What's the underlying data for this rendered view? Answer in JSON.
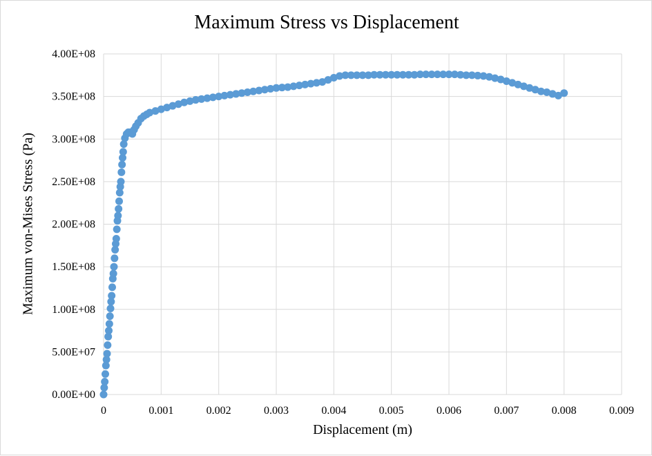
{
  "chart_data": {
    "type": "scatter",
    "title": "Maximum Stress vs Displacement",
    "xlabel": "Displacement (m)",
    "ylabel": "Maximum von-Mises Stress (Pa)",
    "xlim": [
      0,
      0.009
    ],
    "ylim": [
      0,
      400000000
    ],
    "x_ticks": [
      0,
      0.001,
      0.002,
      0.003,
      0.004,
      0.005,
      0.006,
      0.007,
      0.008,
      0.009
    ],
    "x_tick_labels": [
      "0",
      "0.001",
      "0.002",
      "0.003",
      "0.004",
      "0.005",
      "0.006",
      "0.007",
      "0.008",
      "0.009"
    ],
    "y_ticks": [
      0,
      50000000,
      100000000,
      150000000,
      200000000,
      250000000,
      300000000,
      350000000,
      400000000
    ],
    "y_tick_labels": [
      "0.00E+00",
      "5.00E+07",
      "1.00E+08",
      "1.50E+08",
      "2.00E+08",
      "2.50E+08",
      "3.00E+08",
      "3.50E+08",
      "4.00E+08"
    ],
    "grid": true,
    "legend": false,
    "marker_color": "#5b9bd5",
    "grid_color": "#d9d9d9",
    "series": [
      {
        "x": [
          0,
          1e-05,
          2e-05,
          3e-05,
          4e-05,
          5e-05,
          6e-05,
          7e-05,
          8e-05,
          9e-05,
          0.0001,
          0.00011,
          0.00012,
          0.00013,
          0.00014,
          0.00015,
          0.00016,
          0.00017,
          0.00018,
          0.00019,
          0.0002,
          0.00021,
          0.00022,
          0.00023,
          0.00024,
          0.00025,
          0.00026,
          0.00027,
          0.00028,
          0.00029,
          0.0003,
          0.00031,
          0.00032,
          0.00033,
          0.00034,
          0.00035,
          0.00037,
          0.0004,
          0.00043,
          0.00046,
          0.0005,
          0.00053,
          0.00056,
          0.0006,
          0.00065,
          0.0007,
          0.00075,
          0.0008,
          0.0009,
          0.001,
          0.0011,
          0.0012,
          0.0013,
          0.0014,
          0.0015,
          0.0016,
          0.0017,
          0.0018,
          0.0019,
          0.002,
          0.0021,
          0.0022,
          0.0023,
          0.0024,
          0.0025,
          0.0026,
          0.0027,
          0.0028,
          0.0029,
          0.003,
          0.0031,
          0.0032,
          0.0033,
          0.0034,
          0.0035,
          0.0036,
          0.0037,
          0.0038,
          0.0039,
          0.004,
          0.0041,
          0.0042,
          0.0043,
          0.0044,
          0.0045,
          0.0046,
          0.0047,
          0.0048,
          0.0049,
          0.005,
          0.0051,
          0.0052,
          0.0053,
          0.0054,
          0.0055,
          0.0056,
          0.0057,
          0.0058,
          0.0059,
          0.006,
          0.0061,
          0.0062,
          0.0063,
          0.0064,
          0.0065,
          0.0066,
          0.0067,
          0.0068,
          0.0069,
          0.007,
          0.0071,
          0.0072,
          0.0073,
          0.0074,
          0.0075,
          0.0076,
          0.0077,
          0.0078,
          0.0079,
          0.008
        ],
        "y": [
          0,
          8000000,
          15000000,
          24000000,
          34000000,
          41000000,
          48000000,
          58000000,
          68000000,
          75000000,
          83000000,
          92000000,
          101000000,
          109000000,
          116000000,
          126000000,
          136000000,
          142000000,
          150000000,
          160000000,
          170000000,
          177000000,
          183000000,
          194000000,
          204000000,
          210000000,
          218000000,
          227000000,
          237000000,
          244000000,
          250000000,
          261000000,
          270000000,
          278000000,
          285000000,
          294000000,
          301000000,
          306000000,
          308000000,
          308000000,
          306000000,
          311000000,
          315000000,
          319000000,
          324000000,
          327000000,
          329000000,
          331000000,
          333000000,
          335000000,
          337000000,
          339000000,
          341000000,
          343000000,
          344500000,
          346000000,
          347000000,
          348000000,
          349000000,
          350000000,
          351000000,
          352000000,
          353000000,
          354000000,
          355000000,
          356000000,
          357000000,
          358000000,
          359000000,
          360000000,
          360500000,
          361000000,
          362000000,
          363000000,
          364000000,
          365000000,
          366000000,
          367000000,
          369500000,
          372000000,
          374000000,
          375000000,
          375000000,
          375000000,
          375000000,
          375000000,
          375500000,
          375500000,
          375500000,
          375500000,
          375500000,
          375500000,
          375500000,
          375500000,
          376000000,
          376000000,
          376000000,
          376000000,
          376000000,
          376000000,
          376000000,
          375500000,
          375000000,
          375000000,
          374500000,
          374000000,
          373000000,
          371500000,
          370000000,
          368000000,
          366000000,
          364000000,
          362000000,
          360000000,
          358000000,
          356000000,
          355000000,
          353000000,
          351000000,
          354000000
        ]
      }
    ]
  }
}
